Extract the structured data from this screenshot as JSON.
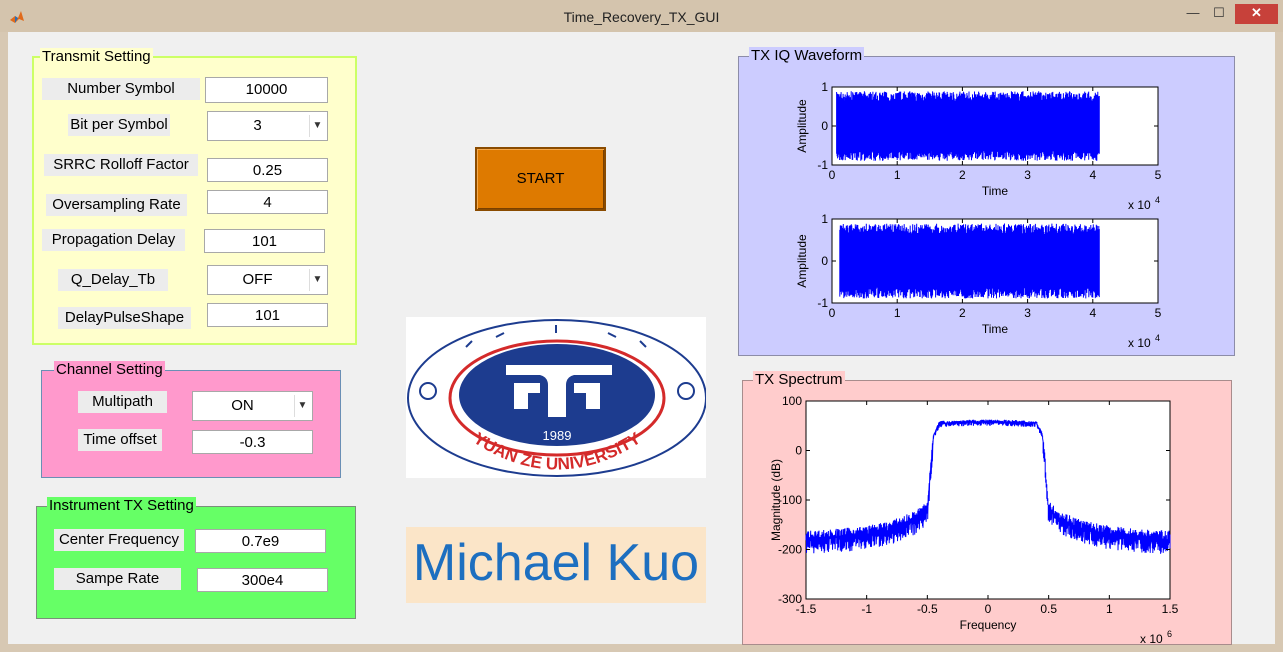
{
  "window": {
    "title": "Time_Recovery_TX_GUI",
    "min": "—",
    "max": "☐",
    "close": "✕"
  },
  "transmit": {
    "title": "Transmit Setting",
    "number_symbol_label": "Number Symbol",
    "number_symbol": "10000",
    "bit_per_symbol_label": "Bit per Symbol",
    "bit_per_symbol": "3",
    "srrc_label": "SRRC Rolloff Factor",
    "srrc": "0.25",
    "oversampling_label": "Oversampling Rate",
    "oversampling": "4",
    "propagation_label": "Propagation Delay",
    "propagation": "101",
    "q_delay_label": "Q_Delay_Tb",
    "q_delay": "OFF",
    "delay_pulse_label": "DelayPulseShape",
    "delay_pulse": "101"
  },
  "channel": {
    "title": "Channel Setting",
    "multipath_label": "Multipath",
    "multipath": "ON",
    "time_offset_label": "Time offset",
    "time_offset": "-0.3"
  },
  "instrument": {
    "title": "Instrument TX Setting",
    "center_freq_label": "Center Frequency",
    "center_freq": "0.7e9",
    "sample_rate_label": "Sampe Rate",
    "sample_rate": "300e4"
  },
  "start_label": "START",
  "logo": {
    "year": "1989",
    "text": "YUAN ZE UNIVERSITY"
  },
  "author": "Michael Kuo",
  "iq_panel": {
    "title": "TX IQ Waveform"
  },
  "spectrum_panel": {
    "title": "TX Spectrum"
  },
  "colors": {
    "transmit_bg": "#ffffcc",
    "channel_bg": "#ff99cc",
    "instrument_bg": "#66ff66",
    "iq_bg": "#ccccff",
    "spectrum_bg": "#ffcccc",
    "signal": "#0000ff",
    "start": "#de7a00"
  },
  "chart_data": [
    {
      "type": "line",
      "ylabel": "Amplitude",
      "xlabel": "Time",
      "x_exponent": "x 10^4",
      "xlim": [
        0,
        5
      ],
      "ylim": [
        -1,
        1
      ],
      "xticks": [
        "0",
        "1",
        "2",
        "3",
        "4",
        "5"
      ],
      "yticks": [
        "1",
        "0",
        "-1"
      ],
      "series": [
        {
          "x_range": [
            0.07,
            4.1
          ],
          "envelope": [
            -0.85,
            0.85
          ]
        }
      ]
    },
    {
      "type": "line",
      "ylabel": "Amplitude",
      "xlabel": "Time",
      "x_exponent": "x 10^4",
      "xlim": [
        0,
        5
      ],
      "ylim": [
        -1,
        1
      ],
      "xticks": [
        "0",
        "1",
        "2",
        "3",
        "4",
        "5"
      ],
      "yticks": [
        "1",
        "0",
        "-1"
      ],
      "series": [
        {
          "x_range": [
            0.12,
            4.1
          ],
          "envelope": [
            -0.85,
            0.85
          ]
        }
      ]
    },
    {
      "type": "line",
      "ylabel": "Magnitude (dB)",
      "xlabel": "Frequency",
      "x_exponent": "x 10^6",
      "xlim": [
        -1.5,
        1.5
      ],
      "ylim": [
        -300,
        100
      ],
      "xticks": [
        "-1.5",
        "-1",
        "-0.5",
        "0",
        "0.5",
        "1",
        "1.5"
      ],
      "yticks": [
        "100",
        "0",
        "-100",
        "-200",
        "-300"
      ],
      "series": [
        {
          "x": [
            -1.5,
            -1.2,
            -1.0,
            -0.8,
            -0.6,
            -0.5,
            -0.48,
            -0.45,
            -0.4,
            -0.2,
            0,
            0.2,
            0.4,
            0.45,
            0.48,
            0.5,
            0.6,
            0.8,
            1.0,
            1.2,
            1.5
          ],
          "y": [
            -180,
            -175,
            -170,
            -160,
            -140,
            -120,
            -60,
            30,
            55,
            57,
            58,
            57,
            55,
            30,
            -60,
            -120,
            -140,
            -160,
            -170,
            -175,
            -180
          ]
        }
      ]
    }
  ]
}
